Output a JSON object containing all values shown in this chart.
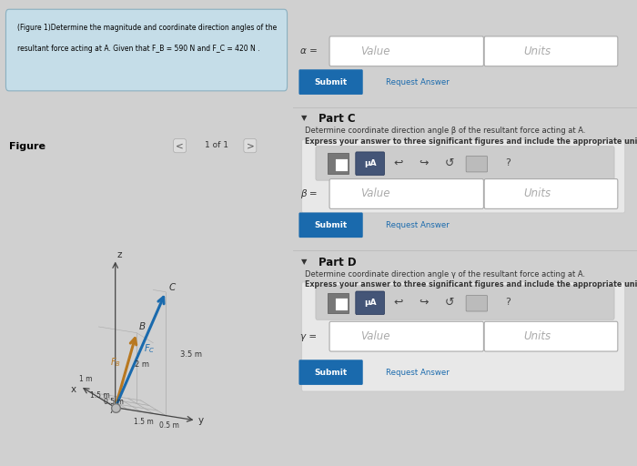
{
  "bg_color": "#d0d0d0",
  "left_panel_bg": "#ffffff",
  "right_panel_bg": "#e0e0e0",
  "problem_box_bg": "#c5dde8",
  "problem_line1": "(Figure 1)Determine the magnitude and coordinate direction angles of the",
  "problem_line2": "resultant force acting at A. Given that F_B = 590 N and F_C = 420 N .",
  "figure_label": "Figure",
  "nav_text": "1 of 1",
  "part_c_title": "Part C",
  "part_c_desc1": "Determine coordinate direction angle β of the resultant force acting at A.",
  "part_c_desc2": "Express your answer to three significant figures and include the appropriate units.",
  "part_d_title": "Part D",
  "part_d_desc1": "Determine coordinate direction angle γ of the resultant force acting at A.",
  "part_d_desc2": "Express your answer to three significant figures and include the appropriate units.",
  "alpha_label": "α =",
  "beta_label": "β =",
  "gamma_label": "γ =",
  "force_color_FB": "#b87820",
  "force_color_FC": "#1a6aad",
  "grid_color": "#aaaaaa",
  "submit_color": "#1a6aad",
  "request_answer_color": "#1a6aad"
}
